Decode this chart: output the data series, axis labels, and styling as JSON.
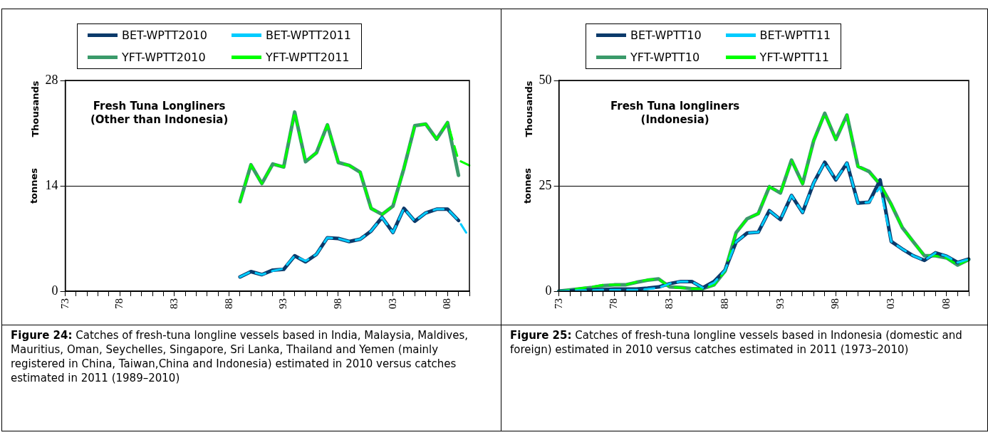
{
  "chart_data": [
    {
      "type": "line",
      "legend": "top",
      "grid": "y",
      "ylabel": "tonnes",
      "ylim": [
        0,
        28
      ],
      "yticks": [
        0,
        14,
        28
      ],
      "categories": [
        "73",
        null,
        null,
        null,
        null,
        "78",
        null,
        null,
        null,
        null,
        "83",
        null,
        null,
        null,
        null,
        "88",
        null,
        null,
        null,
        null,
        "93",
        null,
        null,
        null,
        null,
        "98",
        null,
        null,
        null,
        null,
        "03",
        null,
        null,
        null,
        null,
        "08",
        null,
        null
      ],
      "annotations": [
        "Fresh Tuna Longliners\n(Other than Indonesia)",
        "Thousands",
        "Figure 24:",
        "Catches of fresh-tuna longline vessels based in India, Malaysia, Maldives, Mauritius, Oman, Seychelles, Singapore, Sri Lanka, Thailand and Yemen  (mainly registered in China, Taiwan,China and Indonesia) estimated in 2010 versus catches estimated in 2011 (1989–2010)"
      ],
      "series": [
        {
          "name": "BET-WPTT2010",
          "color": "#0b3a6b",
          "line_style": "solid",
          "values": [
            null,
            null,
            null,
            null,
            null,
            null,
            null,
            null,
            null,
            null,
            null,
            null,
            null,
            null,
            null,
            null,
            1.9,
            2.6,
            2.2,
            2.8,
            2.9,
            4.7,
            3.9,
            4.9,
            7.1,
            7.0,
            6.6,
            6.9,
            8.0,
            9.8,
            7.8,
            11.0,
            9.3,
            10.4,
            10.9,
            10.9,
            9.4,
            null
          ]
        },
        {
          "name": "BET-WPTT2011",
          "color": "#00ccff",
          "line_style": "dashed",
          "values": [
            null,
            null,
            null,
            null,
            null,
            null,
            null,
            null,
            null,
            null,
            null,
            null,
            null,
            null,
            null,
            null,
            1.9,
            2.6,
            2.2,
            2.7,
            3.0,
            4.7,
            4.0,
            4.9,
            7.1,
            7.0,
            6.6,
            6.9,
            8.0,
            9.8,
            7.8,
            11.0,
            9.3,
            10.4,
            10.9,
            10.9,
            9.4,
            7.1
          ]
        },
        {
          "name": "YFT-WPTT2010",
          "color": "#3a9a6a",
          "line_style": "solid",
          "values": [
            null,
            null,
            null,
            null,
            null,
            null,
            null,
            null,
            null,
            null,
            null,
            null,
            null,
            null,
            null,
            null,
            11.9,
            16.8,
            14.3,
            16.9,
            16.5,
            23.8,
            17.2,
            18.4,
            22.1,
            17.1,
            16.7,
            15.8,
            11.0,
            10.2,
            11.3,
            16.3,
            22.0,
            22.2,
            20.2,
            22.4,
            15.4,
            null
          ]
        },
        {
          "name": "YFT-WPTT2011",
          "color": "#00ff00",
          "line_style": "dashed",
          "values": [
            null,
            null,
            null,
            null,
            null,
            null,
            null,
            null,
            null,
            null,
            null,
            null,
            null,
            null,
            null,
            null,
            11.9,
            16.8,
            14.3,
            16.9,
            16.5,
            23.8,
            17.2,
            18.4,
            22.1,
            17.1,
            16.7,
            15.8,
            11.0,
            10.2,
            11.3,
            16.3,
            22.0,
            22.2,
            20.2,
            22.4,
            17.4,
            16.7
          ]
        }
      ]
    },
    {
      "type": "line",
      "legend": "top",
      "grid": "y",
      "ylabel": "tonnes",
      "ylim": [
        0,
        50
      ],
      "yticks": [
        0,
        25,
        50
      ],
      "categories": [
        "73",
        null,
        null,
        null,
        null,
        "78",
        null,
        null,
        null,
        null,
        "83",
        null,
        null,
        null,
        null,
        "88",
        null,
        null,
        null,
        null,
        "93",
        null,
        null,
        null,
        null,
        "98",
        null,
        null,
        null,
        null,
        "03",
        null,
        null,
        null,
        null,
        "08",
        null,
        null
      ],
      "annotations": [
        "Fresh Tuna longliners\n(Indonesia)",
        "Thousands",
        "Figure 25:",
        "Catches of fresh-tuna longline vessels based in Indonesia (domestic and foreign) estimated in 2010 versus catches estimated in 2011 (1973–2010)"
      ],
      "series": [
        {
          "name": "BET-WPTT10",
          "color": "#0b3a6b",
          "line_style": "solid",
          "values": [
            0,
            0.1,
            0.3,
            0.3,
            0.4,
            0.5,
            0.5,
            0.5,
            0.7,
            1.0,
            1.8,
            2.3,
            2.3,
            0.8,
            2.3,
            5.0,
            11.7,
            13.8,
            14.0,
            19.1,
            17.0,
            22.7,
            18.7,
            25.7,
            30.6,
            26.4,
            30.4,
            20.9,
            21.1,
            26.4,
            11.8,
            10.0,
            8.4,
            7.3,
            9.1,
            8.3,
            6.8,
            7.6
          ]
        },
        {
          "name": "BET-WPTT11",
          "color": "#00ccff",
          "line_style": "dashed",
          "values": [
            0,
            0.1,
            0.2,
            0.2,
            0.3,
            0.3,
            0.3,
            0.3,
            0.5,
            0.8,
            1.8,
            2.3,
            2.3,
            0.8,
            2.0,
            5.0,
            11.7,
            13.8,
            14.0,
            19.1,
            17.0,
            22.7,
            18.7,
            25.7,
            30.6,
            26.4,
            30.4,
            20.9,
            21.1,
            24.7,
            11.8,
            10.0,
            8.4,
            7.3,
            9.1,
            8.3,
            6.8,
            7.6
          ]
        },
        {
          "name": "YFT-WPTT10",
          "color": "#3a9a6a",
          "line_style": "solid",
          "values": [
            0,
            0.3,
            0.6,
            0.9,
            1.3,
            1.5,
            1.5,
            2.1,
            2.6,
            2.9,
            1.0,
            0.9,
            0.6,
            0.6,
            1.5,
            4.8,
            13.9,
            17.2,
            18.4,
            24.8,
            23.3,
            31.1,
            25.5,
            35.7,
            42.2,
            36.0,
            41.8,
            29.6,
            28.4,
            25.3,
            20.6,
            15.1,
            11.7,
            8.4,
            8.4,
            7.9,
            6.2,
            7.5
          ]
        },
        {
          "name": "YFT-WPTT11",
          "color": "#00ff00",
          "line_style": "dashed",
          "values": [
            0,
            0.3,
            0.7,
            1.0,
            1.5,
            1.5,
            1.5,
            2.2,
            2.7,
            2.9,
            1.0,
            0.8,
            0.6,
            0.6,
            1.5,
            4.8,
            13.9,
            17.2,
            18.4,
            24.8,
            23.3,
            31.1,
            25.5,
            35.7,
            42.2,
            36.0,
            41.8,
            29.6,
            28.4,
            25.3,
            20.6,
            15.1,
            11.7,
            8.4,
            8.4,
            7.9,
            6.2,
            7.5
          ]
        }
      ]
    }
  ]
}
